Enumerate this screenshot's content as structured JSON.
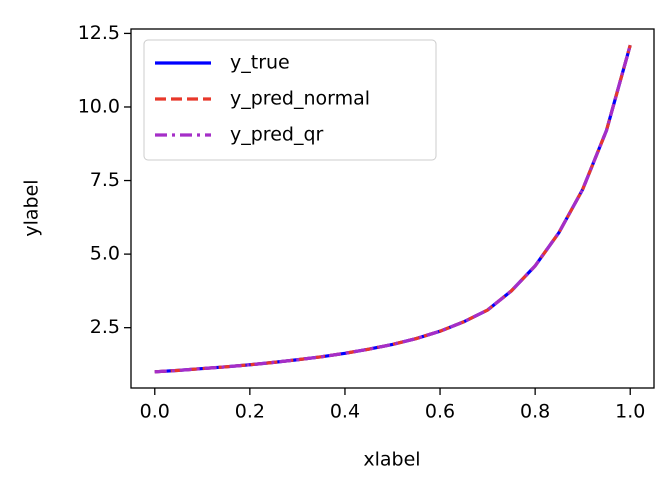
{
  "chart_data": {
    "type": "line",
    "x_label": "xlabel",
    "y_label": "ylabel",
    "x": [
      0,
      0.05,
      0.1,
      0.15,
      0.2,
      0.25,
      0.3,
      0.35,
      0.4,
      0.45,
      0.5,
      0.55,
      0.6,
      0.65,
      0.7,
      0.75,
      0.8,
      0.85,
      0.9,
      0.95,
      1
    ],
    "series": [
      {
        "name": "y_true",
        "color": "#0000ff",
        "dash": "solid",
        "values": [
          1.0,
          1.05,
          1.11,
          1.17,
          1.24,
          1.32,
          1.41,
          1.51,
          1.63,
          1.77,
          1.93,
          2.13,
          2.38,
          2.7,
          3.1,
          3.75,
          4.6,
          5.73,
          7.2,
          9.2,
          12.1
        ]
      },
      {
        "name": "y_pred_normal",
        "color": "#e8382a",
        "dash": "dashed",
        "values": [
          1.0,
          1.05,
          1.11,
          1.17,
          1.24,
          1.32,
          1.41,
          1.51,
          1.63,
          1.77,
          1.93,
          2.13,
          2.38,
          2.7,
          3.1,
          3.75,
          4.6,
          5.73,
          7.2,
          9.2,
          12.1
        ]
      },
      {
        "name": "y_pred_qr",
        "color": "#a52ec8",
        "dash": "dashdot",
        "values": [
          1.0,
          1.05,
          1.11,
          1.17,
          1.24,
          1.32,
          1.41,
          1.51,
          1.63,
          1.77,
          1.93,
          2.13,
          2.38,
          2.7,
          3.1,
          3.75,
          4.6,
          5.73,
          7.2,
          9.2,
          12.1
        ]
      }
    ],
    "xlim": [
      -0.05,
      1.05
    ],
    "xticks": [
      {
        "value": 0,
        "label": "0.0"
      },
      0.2,
      0.4,
      0.6,
      0.8,
      {
        "value": 1,
        "label": "1.0"
      }
    ],
    "ylim": [
      0.45,
      12.65
    ],
    "yticks": [
      2.5,
      {
        "value": 5,
        "label": "5.0"
      },
      7.5,
      {
        "value": 10,
        "label": "10.0"
      },
      12.5
    ],
    "legend": "upper left",
    "grid": false
  }
}
